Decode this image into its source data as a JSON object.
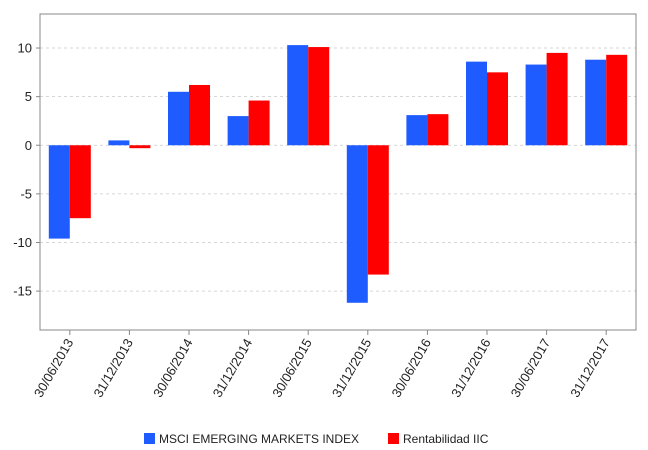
{
  "chart_data": {
    "type": "bar",
    "title": "",
    "xlabel": "",
    "ylabel": "",
    "categories": [
      "30/06/2013",
      "31/12/2013",
      "30/06/2014",
      "31/12/2014",
      "30/06/2015",
      "31/12/2015",
      "30/06/2016",
      "31/12/2016",
      "30/06/2017",
      "31/12/2017"
    ],
    "series": [
      {
        "name": "MSCI EMERGING MARKETS INDEX",
        "color": "#1f5cff",
        "values": [
          -9.6,
          0.5,
          5.5,
          3.0,
          10.3,
          -16.2,
          3.1,
          8.6,
          8.3,
          8.8
        ]
      },
      {
        "name": "Rentabilidad IIC",
        "color": "#ff0000",
        "values": [
          -7.5,
          -0.3,
          6.2,
          4.6,
          10.1,
          -13.3,
          3.2,
          7.5,
          9.5,
          9.3
        ]
      }
    ],
    "ylim": [
      -19,
      13.5
    ],
    "yticks": [
      10,
      5,
      0,
      -5,
      -10,
      -15
    ],
    "grid": true,
    "legend": "bottom"
  }
}
